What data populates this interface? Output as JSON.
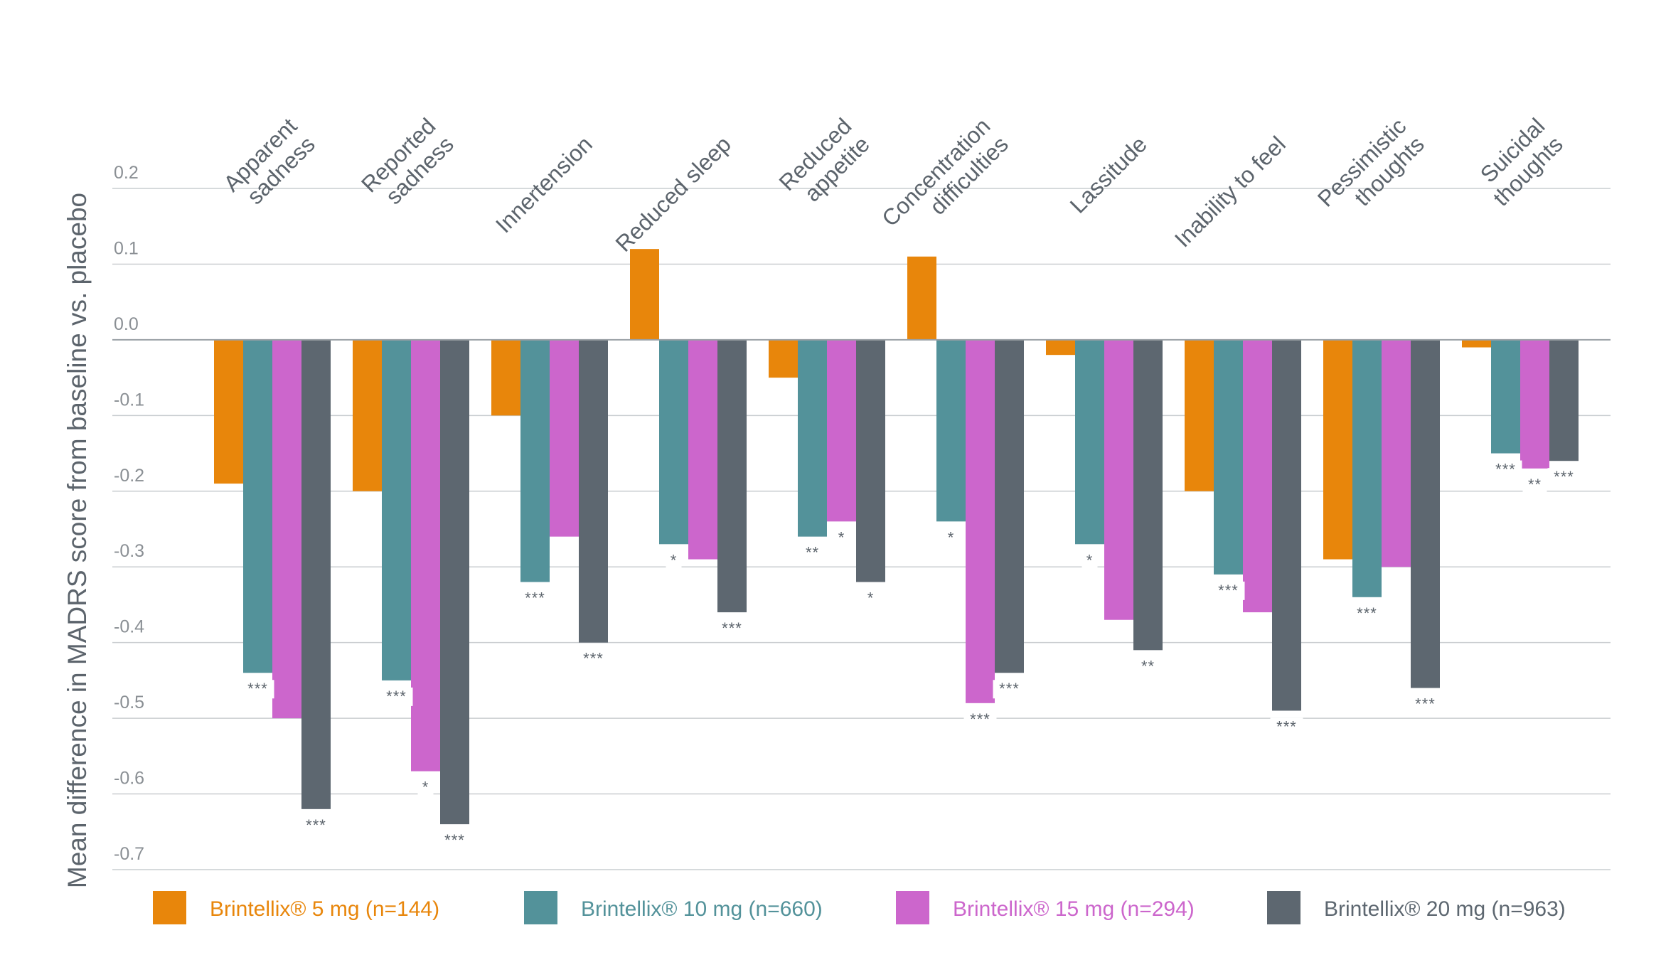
{
  "chart_data": {
    "type": "bar",
    "title": "",
    "ylabel": "Mean difference in MADRS score from baseline vs. placebo",
    "ylim": [
      -0.7,
      0.2
    ],
    "yticks": [
      0.2,
      0.1,
      0.0,
      -0.1,
      -0.2,
      -0.3,
      -0.4,
      -0.5,
      -0.6,
      -0.7
    ],
    "ytick_labels": [
      "0.2",
      "0.1",
      "0.0",
      "-0.1",
      "-0.2",
      "-0.3",
      "-0.4",
      "-0.5",
      "-0.6",
      "-0.7"
    ],
    "grid": true,
    "legend_position": "bottom",
    "categories": [
      [
        "Apparent",
        "sadness"
      ],
      [
        "Reported",
        "sadness"
      ],
      [
        "Innertension"
      ],
      [
        "Reduced sleep"
      ],
      [
        "Reduced",
        "appetite"
      ],
      [
        "Concentration",
        "difficulties"
      ],
      [
        "Lassitude"
      ],
      [
        "Inability to feel"
      ],
      [
        "Pessimistic",
        "thoughts"
      ],
      [
        "Suicidal",
        "thoughts"
      ]
    ],
    "series": [
      {
        "name": "Brintellix® 5 mg (n=144)",
        "color": "#e8860b",
        "values": [
          -0.19,
          -0.2,
          -0.1,
          0.12,
          -0.05,
          0.11,
          -0.02,
          -0.2,
          -0.29,
          -0.01
        ],
        "significance": [
          "",
          "",
          "",
          "",
          "",
          "",
          "",
          "",
          "",
          ""
        ]
      },
      {
        "name": "Brintellix® 10 mg (n=660)",
        "color": "#53929a",
        "values": [
          -0.44,
          -0.45,
          -0.32,
          -0.27,
          -0.26,
          -0.24,
          -0.27,
          -0.31,
          -0.34,
          -0.15
        ],
        "significance": [
          "***",
          "***",
          "***",
          "*",
          "**",
          "*",
          "*",
          "***",
          "***",
          "***"
        ]
      },
      {
        "name": "Brintellix® 15 mg (n=294)",
        "color": "#cc66cc",
        "values": [
          -0.5,
          -0.57,
          -0.26,
          -0.29,
          -0.24,
          -0.48,
          -0.37,
          -0.36,
          -0.3,
          -0.17
        ],
        "significance": [
          "",
          "*",
          "",
          "",
          "*",
          "***",
          "",
          "",
          "",
          "**"
        ]
      },
      {
        "name": "Brintellix® 20 mg (n=963)",
        "color": "#5d6770",
        "values": [
          -0.62,
          -0.64,
          -0.4,
          -0.36,
          -0.32,
          -0.44,
          -0.41,
          -0.49,
          -0.46,
          -0.16
        ],
        "significance": [
          "***",
          "***",
          "***",
          "***",
          "*",
          "***",
          "**",
          "***",
          "***",
          "***"
        ]
      }
    ]
  },
  "colors": {
    "grid": "#c9cdd0",
    "zero_line": "#9aa0a5",
    "text": "#5c646c"
  }
}
